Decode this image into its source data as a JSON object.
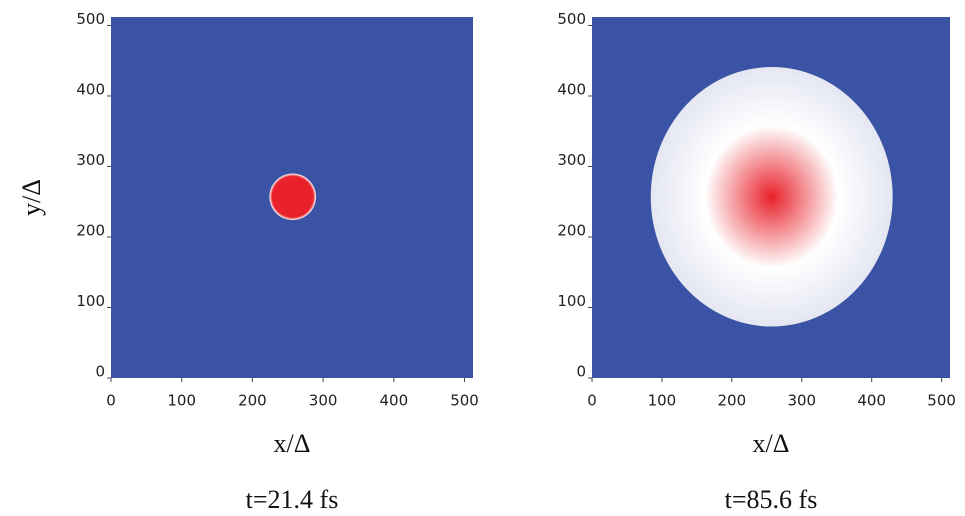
{
  "chart_data": [
    {
      "type": "heatmap",
      "caption": "t=21.4 fs",
      "xlabel": "x/Δ",
      "ylabel": "y/Δ",
      "xlim": [
        0,
        512
      ],
      "ylim": [
        0,
        512
      ],
      "xticks": [
        0,
        100,
        200,
        300,
        400,
        500
      ],
      "yticks": [
        0,
        100,
        200,
        300,
        400,
        500
      ],
      "background_color": "#3a53a4",
      "spot": {
        "x": 257,
        "y": 257,
        "rx": 33,
        "ry": 33,
        "color": "#e8212a",
        "edge_color": "#ffffff"
      }
    },
    {
      "type": "heatmap",
      "caption": "t=85.6 fs",
      "xlabel": "x/Δ",
      "xlim": [
        0,
        512
      ],
      "ylim": [
        0,
        512
      ],
      "xticks": [
        0,
        100,
        200,
        300,
        400,
        500
      ],
      "yticks": [
        0,
        100,
        200,
        300,
        400,
        500
      ],
      "background_color": "#3a53a4",
      "spot": {
        "x": 257,
        "y": 257,
        "rx": 173,
        "ry": 184,
        "color": "#e8212a",
        "edge_color": "#e4e6f2"
      }
    }
  ]
}
